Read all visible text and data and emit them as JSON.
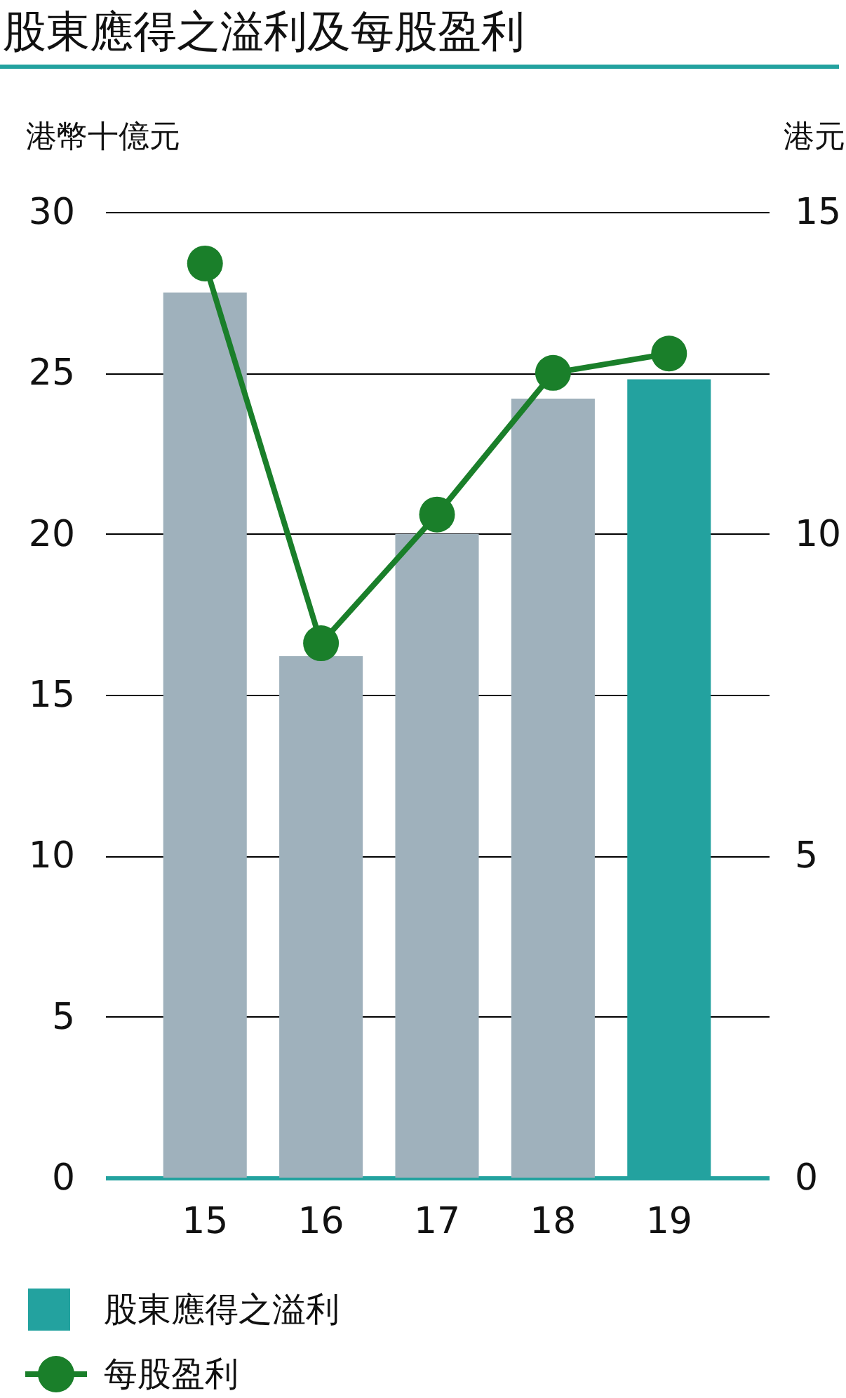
{
  "chart_data": {
    "type": "bar",
    "title": "股東應得之溢利及每股盈利",
    "ylabel": "港幣十億元",
    "y2label": "港元",
    "categories": [
      "15",
      "16",
      "17",
      "18",
      "19"
    ],
    "series": [
      {
        "name": "股東應得之溢利",
        "color": "#23a29f",
        "colors": [
          "#9fb1bc",
          "#9fb1bc",
          "#9fb1bc",
          "#9fb1bc",
          "#23a29f"
        ],
        "values": [
          27.5,
          16.2,
          20.0,
          24.2,
          24.8
        ]
      },
      {
        "name": "每股盈利",
        "type": "line",
        "axis": "y2",
        "color": "#1a7f2a",
        "values": [
          14.2,
          8.3,
          10.3,
          12.5,
          12.8
        ]
      }
    ],
    "ylim": [
      0,
      30
    ],
    "yticks": [
      0,
      5,
      10,
      15,
      20,
      25,
      30
    ],
    "y2lim": [
      0,
      15
    ],
    "y2ticks": [
      0,
      5,
      10,
      15
    ],
    "grid": "y",
    "marker": "circle",
    "legend": "bottom"
  }
}
